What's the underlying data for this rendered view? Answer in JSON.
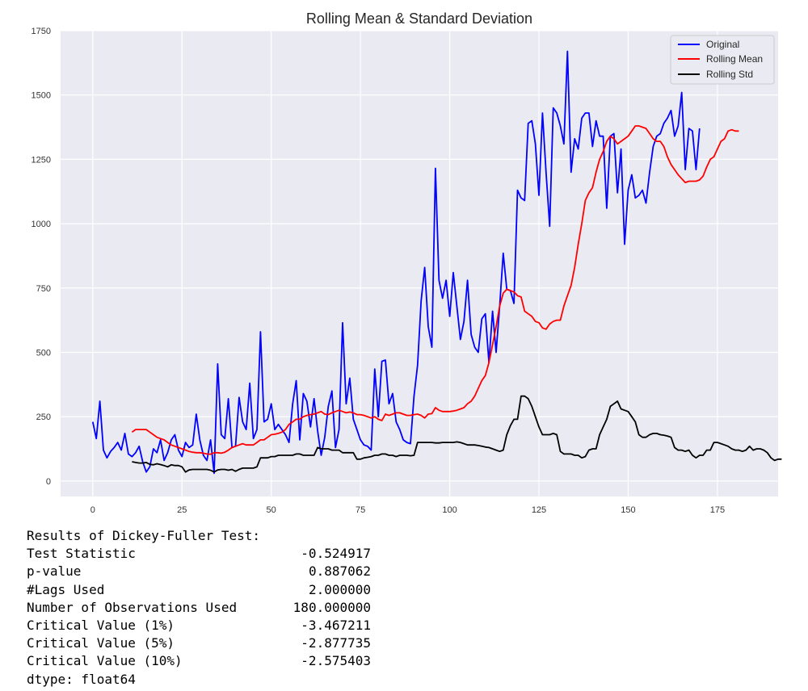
{
  "chart_data": {
    "type": "line",
    "title": "Rolling Mean & Standard Deviation",
    "xlim": [
      -9,
      192
    ],
    "ylim": [
      -60,
      1750
    ],
    "xticks": [
      0,
      25,
      50,
      75,
      100,
      125,
      150,
      175
    ],
    "yticks": [
      0,
      250,
      500,
      750,
      1000,
      1250,
      1500,
      1750
    ],
    "grid": true,
    "legend_position": "top-right",
    "colors": {
      "plot_bg": "#eaeaf2",
      "grid": "#ffffff"
    },
    "series": [
      {
        "name": "Original",
        "color": "#0000ff",
        "x_start": 0,
        "values": [
          230,
          165,
          310,
          120,
          90,
          115,
          130,
          150,
          120,
          185,
          105,
          95,
          110,
          135,
          75,
          35,
          55,
          125,
          110,
          160,
          80,
          110,
          160,
          180,
          120,
          95,
          150,
          130,
          140,
          260,
          160,
          100,
          80,
          160,
          30,
          455,
          180,
          165,
          320,
          130,
          135,
          325,
          230,
          200,
          380,
          165,
          200,
          580,
          230,
          240,
          300,
          200,
          220,
          200,
          180,
          150,
          300,
          390,
          160,
          340,
          310,
          210,
          320,
          195,
          100,
          170,
          290,
          350,
          130,
          200,
          615,
          300,
          400,
          240,
          200,
          160,
          140,
          135,
          120,
          435,
          250,
          465,
          470,
          300,
          340,
          230,
          200,
          160,
          150,
          145,
          330,
          450,
          700,
          830,
          600,
          520,
          1215,
          780,
          710,
          780,
          640,
          810,
          680,
          550,
          620,
          780,
          570,
          520,
          500,
          630,
          650,
          460,
          660,
          500,
          680,
          885,
          745,
          740,
          690,
          1130,
          1100,
          1090,
          1390,
          1400,
          1310,
          1110,
          1430,
          1200,
          990,
          1450,
          1430,
          1380,
          1310,
          1670,
          1200,
          1330,
          1290,
          1410,
          1430,
          1430,
          1300,
          1400,
          1340,
          1340,
          1060,
          1340,
          1350,
          1120,
          1290,
          920,
          1130,
          1190,
          1100,
          1110,
          1130,
          1080,
          1200,
          1300,
          1340,
          1350,
          1390,
          1410,
          1440,
          1340,
          1380,
          1510,
          1210,
          1370,
          1360,
          1210,
          1370
        ]
      },
      {
        "name": "Rolling Mean",
        "color": "#ff0000",
        "x_start": 11,
        "values": [
          190,
          200,
          200,
          200,
          200,
          190,
          180,
          170,
          165,
          160,
          150,
          140,
          135,
          130,
          125,
          120,
          115,
          112,
          110,
          110,
          108,
          105,
          104,
          110,
          110,
          108,
          112,
          120,
          130,
          135,
          140,
          145,
          140,
          140,
          140,
          150,
          160,
          160,
          170,
          180,
          182,
          185,
          190,
          200,
          220,
          230,
          240,
          240,
          250,
          255,
          258,
          260,
          265,
          270,
          260,
          258,
          265,
          270,
          275,
          270,
          265,
          268,
          265,
          258,
          258,
          255,
          250,
          245,
          250,
          240,
          235,
          260,
          255,
          260,
          265,
          265,
          260,
          255,
          255,
          258,
          260,
          255,
          245,
          260,
          262,
          285,
          275,
          270,
          270,
          270,
          272,
          275,
          280,
          285,
          300,
          310,
          330,
          360,
          390,
          410,
          460,
          530,
          600,
          680,
          730,
          745,
          740,
          735,
          720,
          715,
          660,
          650,
          640,
          620,
          615,
          595,
          590,
          610,
          620,
          625,
          625,
          680,
          720,
          760,
          830,
          920,
          1000,
          1090,
          1120,
          1140,
          1200,
          1250,
          1280,
          1320,
          1340,
          1330,
          1310,
          1320,
          1330,
          1340,
          1360,
          1380,
          1380,
          1375,
          1370,
          1350,
          1330,
          1320,
          1320,
          1300,
          1260,
          1230,
          1210,
          1190,
          1175,
          1160,
          1165,
          1165,
          1165,
          1170,
          1185,
          1220,
          1250,
          1260,
          1290,
          1320,
          1330,
          1360,
          1365,
          1360,
          1360
        ]
      },
      {
        "name": "Rolling Std",
        "color": "#000000",
        "x_start": 11,
        "values": [
          75,
          72,
          70,
          70,
          72,
          65,
          63,
          67,
          64,
          60,
          55,
          63,
          60,
          60,
          55,
          35,
          43,
          45,
          45,
          45,
          45,
          45,
          42,
          35,
          43,
          45,
          45,
          42,
          45,
          38,
          45,
          50,
          50,
          50,
          50,
          55,
          90,
          90,
          90,
          95,
          95,
          100,
          100,
          100,
          100,
          100,
          105,
          105,
          100,
          100,
          100,
          100,
          130,
          125,
          125,
          125,
          120,
          120,
          120,
          110,
          110,
          110,
          110,
          85,
          85,
          90,
          92,
          95,
          100,
          100,
          105,
          105,
          100,
          100,
          95,
          100,
          100,
          100,
          98,
          100,
          150,
          150,
          150,
          150,
          150,
          148,
          148,
          150,
          150,
          150,
          150,
          152,
          150,
          145,
          140,
          140,
          140,
          138,
          135,
          132,
          130,
          125,
          120,
          115,
          120,
          180,
          215,
          240,
          240,
          330,
          330,
          320,
          290,
          250,
          210,
          180,
          180,
          180,
          185,
          180,
          115,
          105,
          105,
          105,
          100,
          100,
          90,
          95,
          120,
          125,
          125,
          180,
          210,
          240,
          290,
          300,
          310,
          280,
          275,
          270,
          250,
          230,
          180,
          170,
          170,
          180,
          185,
          185,
          180,
          178,
          175,
          170,
          130,
          120,
          120,
          115,
          120,
          100,
          90,
          100,
          100,
          120,
          120,
          150,
          150,
          145,
          140,
          135,
          125,
          120,
          120,
          115,
          120,
          135,
          120,
          125,
          125,
          120,
          110,
          90,
          80,
          85,
          85
        ]
      }
    ]
  },
  "df_test": {
    "header": "Results of Dickey-Fuller Test:",
    "rows": [
      {
        "label": "Test Statistic",
        "value": "-0.524917"
      },
      {
        "label": "p-value",
        "value": "0.887062"
      },
      {
        "label": "#Lags Used",
        "value": "2.000000"
      },
      {
        "label": "Number of Observations Used",
        "value": "180.000000"
      },
      {
        "label": "Critical Value (1%)",
        "value": "-3.467211"
      },
      {
        "label": "Critical Value (5%)",
        "value": "-2.877735"
      },
      {
        "label": "Critical Value (10%)",
        "value": "-2.575403"
      }
    ],
    "dtype": "dtype: float64"
  }
}
